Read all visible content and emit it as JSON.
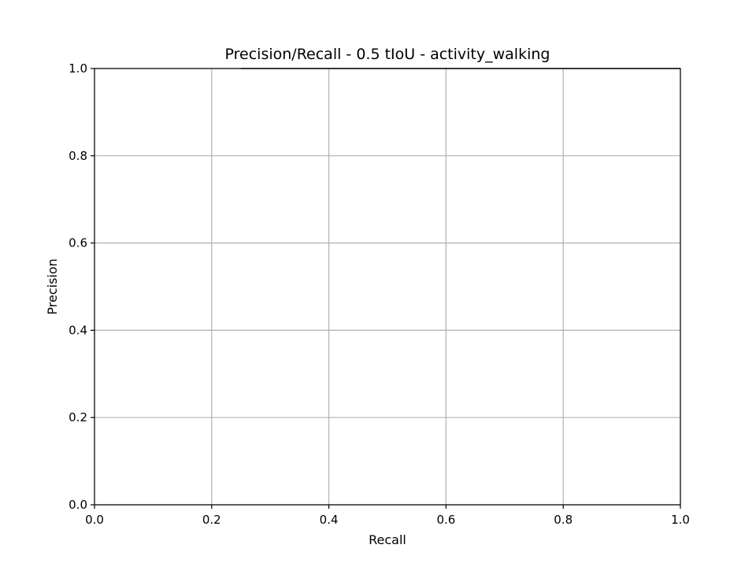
{
  "chart_data": {
    "type": "line",
    "title": "Precision/Recall - 0.5 tIoU - activity_walking",
    "xlabel": "Recall",
    "ylabel": "Precision",
    "xlim": [
      0.0,
      1.0
    ],
    "ylim": [
      0.0,
      1.0
    ],
    "xticks": [
      "0.0",
      "0.2",
      "0.4",
      "0.6",
      "0.8",
      "1.0"
    ],
    "yticks": [
      "0.0",
      "0.2",
      "0.4",
      "0.6",
      "0.8",
      "1.0"
    ],
    "grid": true,
    "series": [
      {
        "x": [
          0.25,
          1.0
        ],
        "y": [
          1.0,
          1.0
        ],
        "color": "#1f3b5a"
      }
    ]
  }
}
